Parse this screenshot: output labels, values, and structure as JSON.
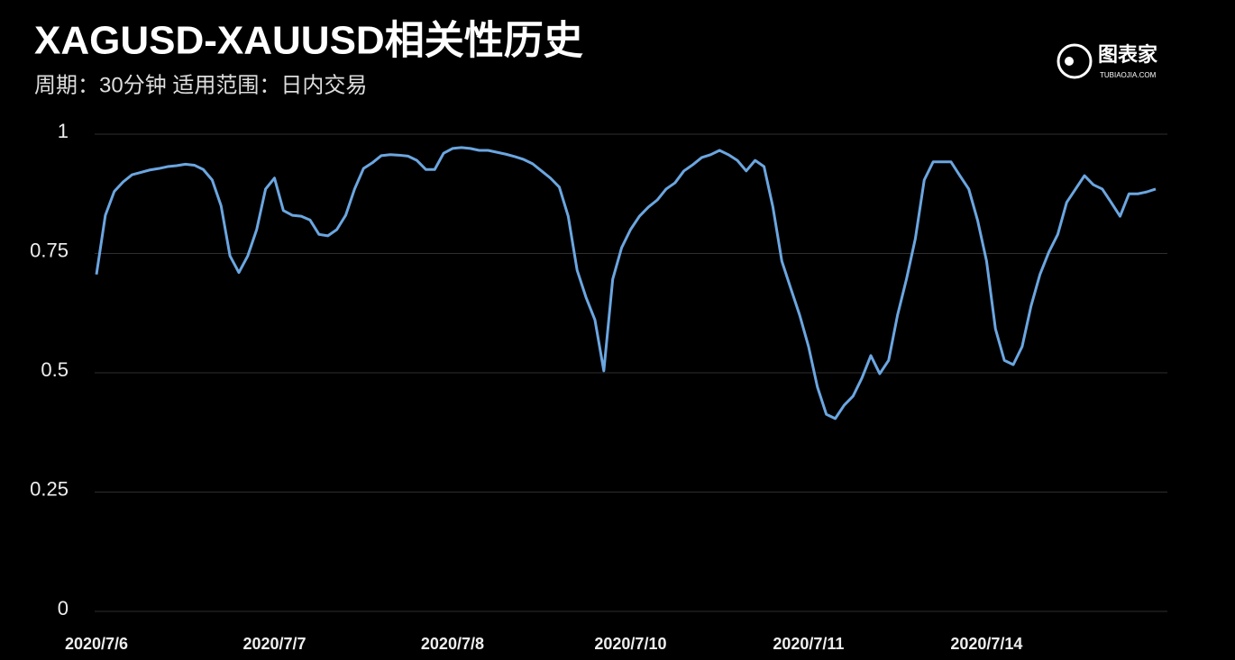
{
  "chart_data": {
    "type": "line",
    "title": "XAGUSD-XAUUSD相关性历史",
    "subtitle": "周期：30分钟  适用范围：日内交易",
    "categories": [
      "2020/7/6",
      null,
      null,
      null,
      null,
      null,
      null,
      null,
      null,
      null,
      null,
      null,
      null,
      null,
      null,
      null,
      null,
      null,
      null,
      null,
      "2020/7/7",
      null,
      null,
      null,
      null,
      null,
      null,
      null,
      null,
      null,
      null,
      null,
      null,
      null,
      null,
      null,
      null,
      null,
      null,
      null,
      "2020/7/8",
      null,
      null,
      null,
      null,
      null,
      null,
      null,
      null,
      null,
      null,
      null,
      null,
      null,
      null,
      null,
      null,
      null,
      null,
      null,
      "2020/7/10",
      null,
      null,
      null,
      null,
      null,
      null,
      null,
      null,
      null,
      null,
      null,
      null,
      null,
      null,
      null,
      null,
      null,
      null,
      null,
      "2020/7/11",
      null,
      null,
      null,
      null,
      null,
      null,
      null,
      null,
      null,
      null,
      null,
      null,
      null,
      null,
      null,
      null,
      null,
      null,
      null,
      "2020/7/14",
      null,
      null,
      null,
      null,
      null,
      null,
      null,
      null,
      null,
      null,
      null,
      null,
      null,
      null,
      null,
      null,
      null,
      null,
      null
    ],
    "series": [
      {
        "color": "#6ba6e0",
        "values": [
          0.706,
          0.83,
          0.88,
          0.9,
          0.915,
          0.92,
          0.925,
          0.928,
          0.932,
          0.934,
          0.937,
          0.935,
          0.926,
          0.904,
          0.85,
          0.745,
          0.71,
          0.745,
          0.8,
          0.885,
          0.908,
          0.84,
          0.83,
          0.828,
          0.82,
          0.79,
          0.787,
          0.8,
          0.83,
          0.885,
          0.928,
          0.94,
          0.955,
          0.957,
          0.956,
          0.954,
          0.945,
          0.926,
          0.926,
          0.96,
          0.97,
          0.972,
          0.97,
          0.966,
          0.966,
          0.962,
          0.958,
          0.953,
          0.947,
          0.938,
          0.923,
          0.908,
          0.889,
          0.828,
          0.715,
          0.658,
          0.611,
          0.504,
          0.696,
          0.762,
          0.8,
          0.828,
          0.847,
          0.862,
          0.885,
          0.898,
          0.923,
          0.936,
          0.951,
          0.957,
          0.966,
          0.957,
          0.945,
          0.923,
          0.945,
          0.932,
          0.847,
          0.734,
          0.677,
          0.621,
          0.555,
          0.47,
          0.413,
          0.404,
          0.432,
          0.451,
          0.489,
          0.536,
          0.498,
          0.526,
          0.621,
          0.696,
          0.781,
          0.904,
          0.942,
          0.942,
          0.942,
          0.913,
          0.885,
          0.819,
          0.734,
          0.592,
          0.526,
          0.517,
          0.555,
          0.64,
          0.706,
          0.753,
          0.79,
          0.857,
          0.885,
          0.913,
          0.894,
          0.885,
          0.857,
          0.828,
          0.875,
          0.875,
          0.879,
          0.885
        ]
      }
    ],
    "ylim": [
      0,
      1
    ],
    "yticks": [
      0,
      0.25,
      0.5,
      0.75,
      1
    ],
    "grid": true
  },
  "logo": {
    "name": "图表家",
    "site": "TUBIAOJIA.COM"
  }
}
